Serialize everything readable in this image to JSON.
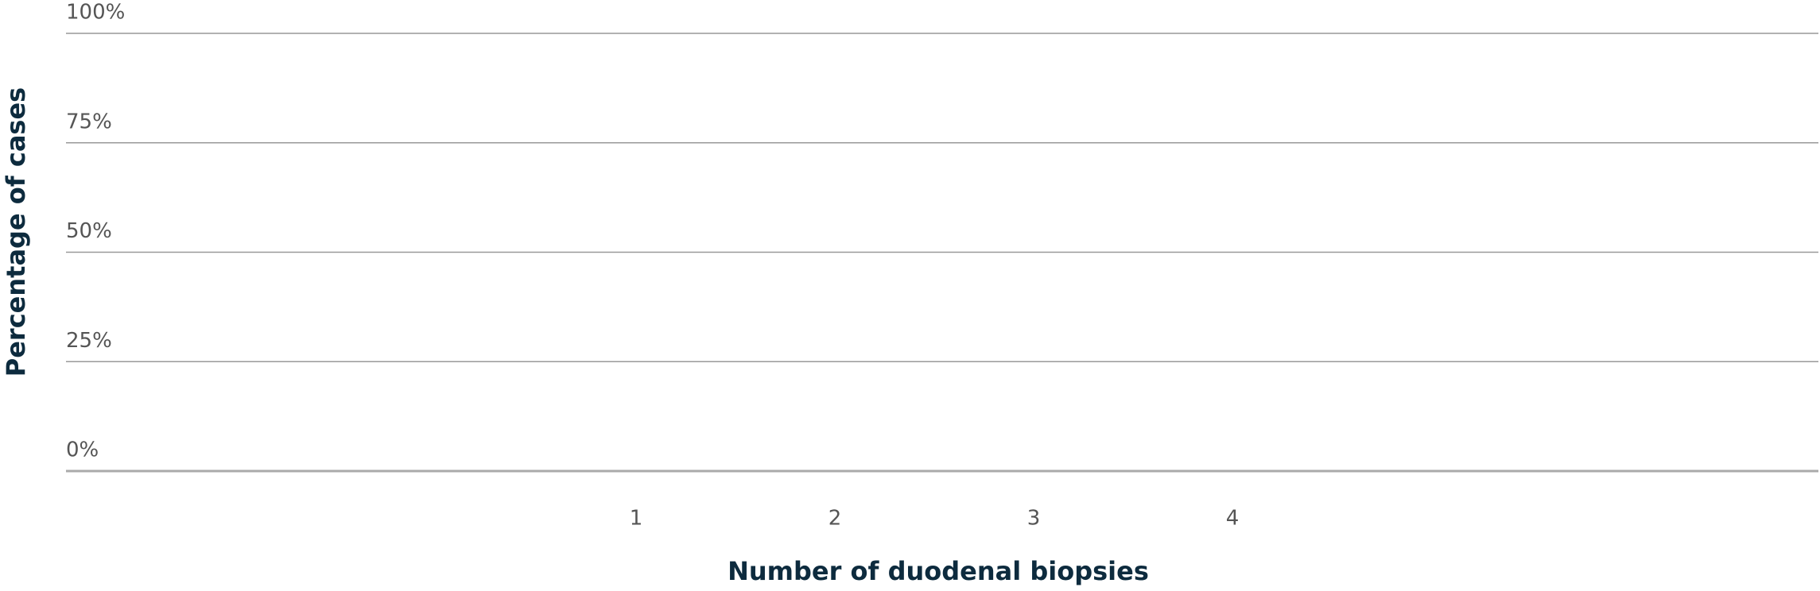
{
  "chart_data": {
    "type": "bar",
    "x_label": "Number of duodenal biopsies",
    "y_label": "Percentage of cases",
    "categories": [
      "1",
      "2",
      "3",
      "4"
    ],
    "ylim": [
      0,
      100
    ],
    "yticks": [
      {
        "value": 0,
        "label": "0%"
      },
      {
        "value": 25,
        "label": "25%"
      },
      {
        "value": 50,
        "label": "50%"
      },
      {
        "value": 75,
        "label": "75%"
      },
      {
        "value": 100,
        "label": "100%"
      }
    ],
    "grid": true
  }
}
